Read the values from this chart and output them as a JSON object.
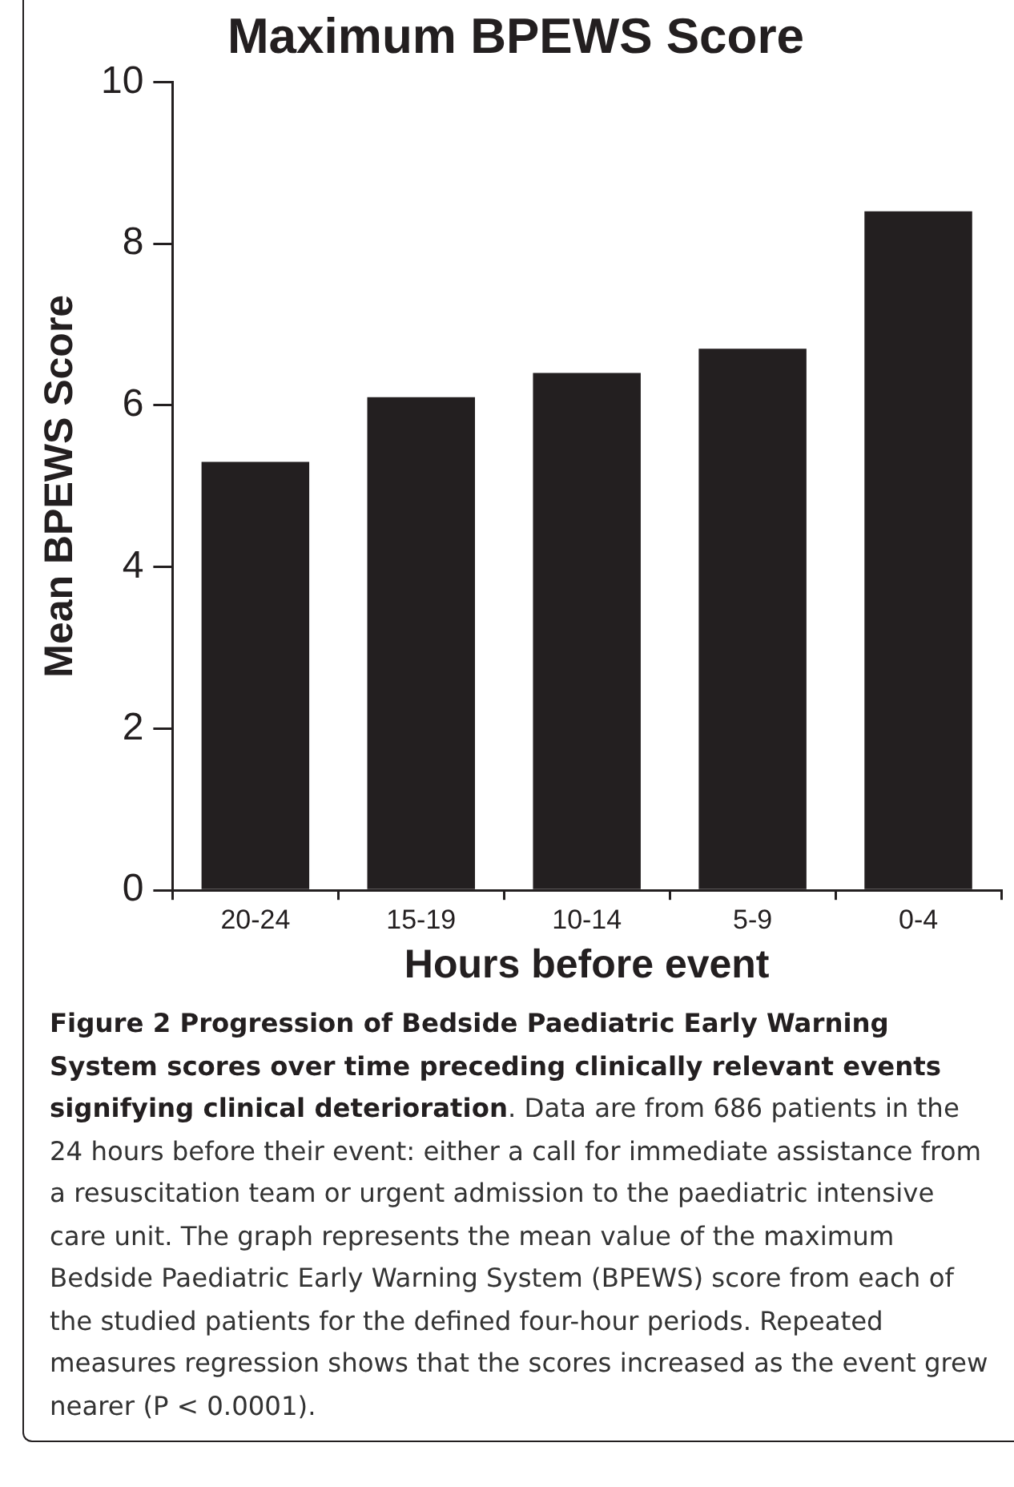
{
  "chart_data": {
    "type": "bar",
    "title": "Maximum BPEWS Score",
    "xlabel": "Hours before event",
    "ylabel": "Mean BPEWS Score",
    "categories": [
      "20-24",
      "15-19",
      "10-14",
      "5-9",
      "0-4"
    ],
    "values": [
      5.3,
      6.1,
      6.4,
      6.7,
      8.4
    ],
    "color": "#231f20",
    "ylim": [
      0,
      10
    ],
    "yticks": [
      0,
      2,
      4,
      6,
      8,
      10
    ],
    "grid": false,
    "legend": false,
    "annotations": [
      "Figure 2 Progression of Bedside Paediatric Early Warning System scores over time preceding clinically relevant events signifying clinical deterioration",
      ". Data are from 686 patients in the 24 hours before their event: either a call for immediate assistance from a resuscitation team or urgent admission to the paediatric intensive care unit. The graph represents the mean value of the maximum Bedside Paediatric Early Warning System (BPEWS) score from each of the studied patients for the defined four-hour periods. Repeated measures regression shows that the scores increased as the event grew nearer (P < 0.0001)."
    ]
  }
}
